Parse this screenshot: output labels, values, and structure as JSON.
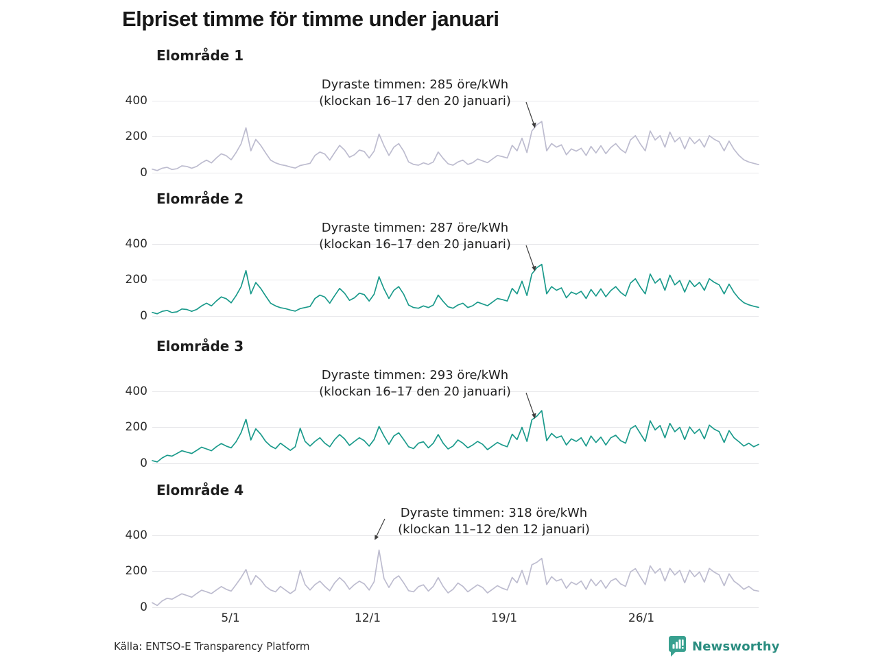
{
  "title": "Elpriset timme för timme under januari",
  "source": "Källa: ENTSO-E Transparency Platform",
  "brand": {
    "name": "Newsworthy",
    "icon_color": "#38a08f",
    "text_color": "#2a8d80"
  },
  "colors": {
    "teal_line": "#1a9a8b",
    "gray_line": "#bdbccf",
    "gridline": "#e7e7ea",
    "annotation_arrow": "#3f3f3f"
  },
  "chart_data": {
    "type": "line",
    "title": "Elpriset timme för timme under januari",
    "unit": "öre/kWh",
    "x_range": "1 januari – 31 januari, hourly prices (values approximated at 6-hour steps)",
    "x_tick_labels": [
      "5/1",
      "12/1",
      "19/1",
      "26/1"
    ],
    "y_ticks": [
      0,
      200,
      400
    ],
    "ylim": [
      0,
      450
    ],
    "grid": "horizontal only",
    "series": [
      {
        "name": "Elområde 1",
        "color": "#bdbccf",
        "peak": {
          "value": 285,
          "hours": "16–17",
          "date": "20 januari"
        },
        "annotation_line1": "Dyraste timmen: 285 öre/kWh",
        "annotation_line2": "(klockan 16–17 den 20 januari)",
        "values": [
          20,
          12,
          25,
          30,
          18,
          22,
          38,
          35,
          25,
          35,
          55,
          70,
          55,
          82,
          105,
          95,
          72,
          112,
          160,
          250,
          122,
          185,
          152,
          110,
          70,
          55,
          45,
          40,
          32,
          26,
          40,
          46,
          52,
          96,
          115,
          104,
          70,
          112,
          152,
          126,
          86,
          100,
          126,
          118,
          82,
          120,
          215,
          150,
          96,
          142,
          162,
          120,
          60,
          46,
          42,
          55,
          46,
          60,
          115,
          80,
          50,
          42,
          60,
          70,
          46,
          56,
          76,
          66,
          56,
          76,
          96,
          90,
          82,
          152,
          122,
          192,
          112,
          232,
          266,
          285,
          122,
          162,
          142,
          155,
          100,
          132,
          120,
          136,
          96,
          146,
          110,
          150,
          106,
          140,
          162,
          130,
          110,
          182,
          206,
          160,
          122,
          232,
          182,
          206,
          142,
          226,
          172,
          196,
          132,
          196,
          162,
          186,
          142,
          206,
          186,
          172,
          122,
          176,
          130,
          96,
          72,
          60,
          52,
          45
        ]
      },
      {
        "name": "Elområde 2",
        "color": "#1a9a8b",
        "peak": {
          "value": 287,
          "hours": "16–17",
          "date": "20 januari"
        },
        "annotation_line1": "Dyraste timmen: 287 öre/kWh",
        "annotation_line2": "(klockan 16–17 den 20 januari)",
        "values": [
          20,
          12,
          26,
          31,
          19,
          23,
          39,
          36,
          26,
          36,
          56,
          71,
          56,
          83,
          106,
          96,
          73,
          113,
          162,
          252,
          123,
          186,
          153,
          111,
          71,
          56,
          46,
          41,
          33,
          27,
          41,
          47,
          53,
          97,
          116,
          105,
          71,
          113,
          153,
          127,
          87,
          101,
          127,
          119,
          83,
          121,
          218,
          151,
          97,
          143,
          163,
          121,
          61,
          47,
          43,
          56,
          47,
          61,
          116,
          81,
          51,
          43,
          61,
          71,
          47,
          57,
          77,
          67,
          57,
          77,
          97,
          91,
          83,
          153,
          123,
          193,
          114,
          234,
          268,
          287,
          123,
          163,
          143,
          156,
          101,
          133,
          121,
          137,
          97,
          147,
          111,
          151,
          107,
          141,
          163,
          131,
          111,
          183,
          207,
          161,
          123,
          233,
          183,
          207,
          143,
          227,
          173,
          197,
          133,
          197,
          163,
          187,
          143,
          207,
          187,
          173,
          123,
          177,
          131,
          97,
          74,
          62,
          54,
          48
        ]
      },
      {
        "name": "Elområde 3",
        "color": "#1a9a8b",
        "peak": {
          "value": 293,
          "hours": "16–17",
          "date": "20 januari"
        },
        "annotation_line1": "Dyraste timmen: 293 öre/kWh",
        "annotation_line2": "(klockan 16–17 den 20 januari)",
        "values": [
          15,
          8,
          30,
          45,
          40,
          55,
          70,
          62,
          55,
          72,
          90,
          80,
          70,
          92,
          110,
          96,
          86,
          120,
          170,
          245,
          130,
          192,
          162,
          122,
          96,
          82,
          112,
          92,
          72,
          92,
          195,
          122,
          96,
          122,
          142,
          112,
          92,
          132,
          160,
          136,
          100,
          122,
          142,
          126,
          96,
          132,
          205,
          152,
          106,
          152,
          170,
          132,
          92,
          82,
          112,
          120,
          86,
          112,
          160,
          112,
          80,
          96,
          130,
          112,
          86,
          102,
          122,
          106,
          76,
          96,
          116,
          102,
          92,
          162,
          132,
          200,
          122,
          242,
          262,
          293,
          126,
          166,
          142,
          152,
          102,
          136,
          122,
          142,
          96,
          152,
          116,
          146,
          102,
          142,
          156,
          126,
          112,
          192,
          210,
          166,
          122,
          236,
          186,
          210,
          142,
          222,
          176,
          200,
          132,
          202,
          166,
          190,
          136,
          212,
          190,
          176,
          116,
          182,
          142,
          120,
          96,
          112,
          92,
          105
        ]
      },
      {
        "name": "Elområde 4",
        "color": "#bdbccf",
        "peak": {
          "value": 318,
          "hours": "11–12",
          "date": "12 januari"
        },
        "annotation_line1": "Dyraste timmen: 318 öre/kWh",
        "annotation_line2": "(klockan 11–12 den 12 januari)",
        "values": [
          25,
          10,
          35,
          50,
          45,
          60,
          75,
          66,
          56,
          76,
          95,
          86,
          76,
          96,
          115,
          100,
          90,
          126,
          165,
          210,
          126,
          176,
          152,
          116,
          96,
          86,
          116,
          96,
          76,
          96,
          205,
          126,
          96,
          126,
          145,
          116,
          92,
          136,
          165,
          140,
          100,
          126,
          145,
          130,
          96,
          142,
          318,
          160,
          110,
          156,
          175,
          136,
          92,
          86,
          115,
          125,
          90,
          116,
          165,
          116,
          80,
          100,
          135,
          116,
          86,
          106,
          125,
          110,
          80,
          100,
          120,
          106,
          96,
          166,
          136,
          205,
          126,
          236,
          250,
          272,
          126,
          170,
          146,
          156,
          106,
          140,
          126,
          146,
          100,
          156,
          120,
          150,
          106,
          146,
          160,
          130,
          116,
          196,
          215,
          170,
          126,
          230,
          190,
          215,
          146,
          216,
          180,
          205,
          136,
          206,
          170,
          196,
          140,
          216,
          195,
          180,
          120,
          186,
          145,
          125,
          100,
          116,
          95,
          90
        ]
      }
    ]
  }
}
